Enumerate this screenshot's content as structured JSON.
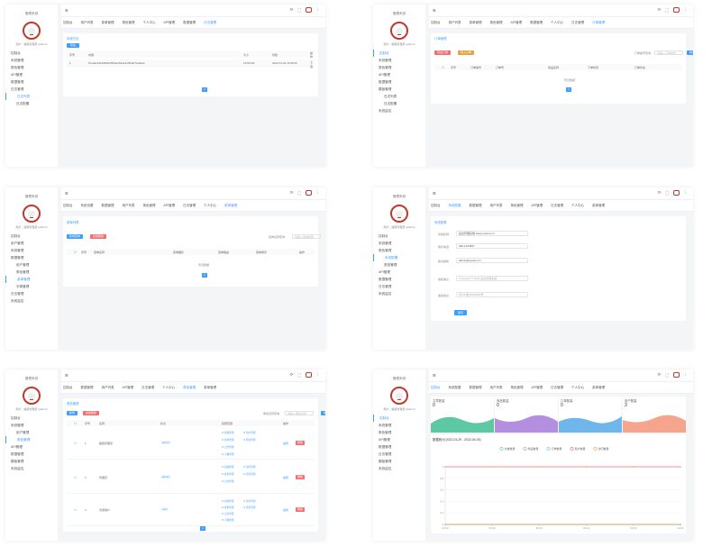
{
  "brand": "管理系统",
  "user_label": "用户：超级管理员 (admin)",
  "menu": {
    "home": "控制台",
    "system": "系统管理",
    "user_mgmt": "用户管理",
    "menu_mgmt": "菜单管理",
    "role_mgmt": "角色管理",
    "dict_mgmt": "字典管理",
    "log_mgmt": "日志管理",
    "log_view": "日志列表",
    "log_config": "日志配置",
    "system_monitor": "系统监控",
    "api_mgmt": "API管理",
    "data_mgmt": "数据管理",
    "template_mgmt": "模板管理"
  },
  "tabs": {
    "home": "控制台",
    "user": "用户列表",
    "menu": "菜单管理",
    "role": "角色管理",
    "personal": "个人中心",
    "log": "日志管理",
    "api": "API管理",
    "data": "数据管理",
    "system": "系统设置",
    "order": "订单管理",
    "config": "系统配置",
    "type": "类型管理"
  },
  "p1": {
    "title": "系统日志",
    "export": "导出",
    "headers": [
      "序号",
      "内容",
      "大小",
      "创建",
      "操作"
    ],
    "row": [
      "1",
      "5c2dac491d5818e55fa4e52de91594ef72da6ec",
      "23.85 KB",
      "2022-01-02 19:38:25",
      "下载"
    ],
    "page": "2"
  },
  "p2": {
    "title": "订单管理",
    "export": "导出订单",
    "import": "导入订单",
    "search_label": "订单编号查询",
    "search_placeholder": "请输入订单编号",
    "search_btn": "搜索",
    "headers": [
      "序号",
      "订单编号",
      "订单号",
      "商品名称",
      "下单时间",
      "订单状态"
    ],
    "empty": "暂无数据",
    "page": "1"
  },
  "p3": {
    "title": "菜单列表",
    "add": "新增菜单",
    "del": "批量删除",
    "search_label": "菜单名称查询",
    "search_placeholder": "请输入菜单名称",
    "search_btn": "搜索",
    "headers": [
      "序号",
      "菜单名称",
      "菜单图标",
      "菜单路由",
      "菜单排序",
      "操作"
    ],
    "empty": "暂无数据",
    "page": "1"
  },
  "p4": {
    "title": "系统配置",
    "fields": [
      {
        "label": "系统名称",
        "value": "后台管理系统 www.system.cn"
      },
      {
        "label": "联系电话",
        "value": "400-1234567"
      },
      {
        "label": "联系邮箱",
        "value": "admin@system.cn"
      },
      {
        "label": "版权信息",
        "value": "Copyright © 2022 后台管理系统"
      },
      {
        "label": "备案信息",
        "value": "京ICP备00000000号"
      }
    ],
    "save": "保存"
  },
  "p5": {
    "title": "角色管理",
    "add": "新增",
    "del": "批量删除",
    "search_label": "角色名称查询",
    "search_placeholder": "请输入角色名称",
    "search_btn": "搜索",
    "headers": [
      "序号",
      "名称",
      "标识",
      "权限范围",
      "操作"
    ],
    "rows": [
      {
        "id": "1",
        "name": "超级管理员",
        "code": "admin",
        "perms": [
          "系统管理",
          "用户管理",
          "菜单管理",
          "角色管理",
          "日志管理",
          "字典管理"
        ]
      },
      {
        "id": "2",
        "name": "管理员",
        "code": "admin",
        "perms": [
          "系统管理",
          "用户管理",
          "菜单管理",
          "角色管理",
          "日志管理"
        ]
      },
      {
        "id": "3",
        "name": "普通用户",
        "code": "user",
        "perms": [
          "系统管理",
          "用户管理",
          "菜单管理",
          "角色管理",
          "日志管理",
          "字典管理"
        ]
      }
    ],
    "edit": "编辑",
    "delete": "删除",
    "page": "1"
  },
  "p6": {
    "stats": [
      {
        "label": "文章数量",
        "value": "0",
        "color": "#5ec8a5"
      },
      {
        "label": "商品数量",
        "value": "0",
        "color": "#b48ee0"
      },
      {
        "label": "订单数量",
        "value": "0",
        "color": "#6fb7ea"
      },
      {
        "label": "用户数量",
        "value": "3",
        "color": "#f5a48e"
      }
    ],
    "chart_title": "数据统计(2022-03-29 - 2022-04-03)"
  },
  "chart_data": {
    "type": "line",
    "title": "数据统计(2022-03-29 - 2022-04-03)",
    "categories": [
      "03-29",
      "03-30",
      "03-31",
      "04-01",
      "04-02",
      "04-03"
    ],
    "series": [
      {
        "name": "文章数量",
        "values": [
          0,
          0,
          0,
          0,
          0,
          0
        ]
      },
      {
        "name": "商品数量",
        "values": [
          0,
          0,
          0,
          0,
          0,
          0
        ]
      },
      {
        "name": "订单数量",
        "values": [
          0,
          0,
          0,
          0,
          0,
          0
        ]
      },
      {
        "name": "用户数量",
        "values": [
          1,
          1,
          1,
          1,
          1,
          1
        ]
      },
      {
        "name": "访问数量",
        "values": [
          0,
          0,
          0,
          0,
          0,
          0
        ]
      }
    ],
    "ylim": [
      0,
      1
    ],
    "yticks": [
      "1",
      "0.8",
      "0.6",
      "0.4",
      "0.2",
      "0"
    ],
    "colors": [
      "#5ec8a5",
      "#b48ee0",
      "#6fb7ea",
      "#f56c6c",
      "#e6a23c"
    ]
  }
}
